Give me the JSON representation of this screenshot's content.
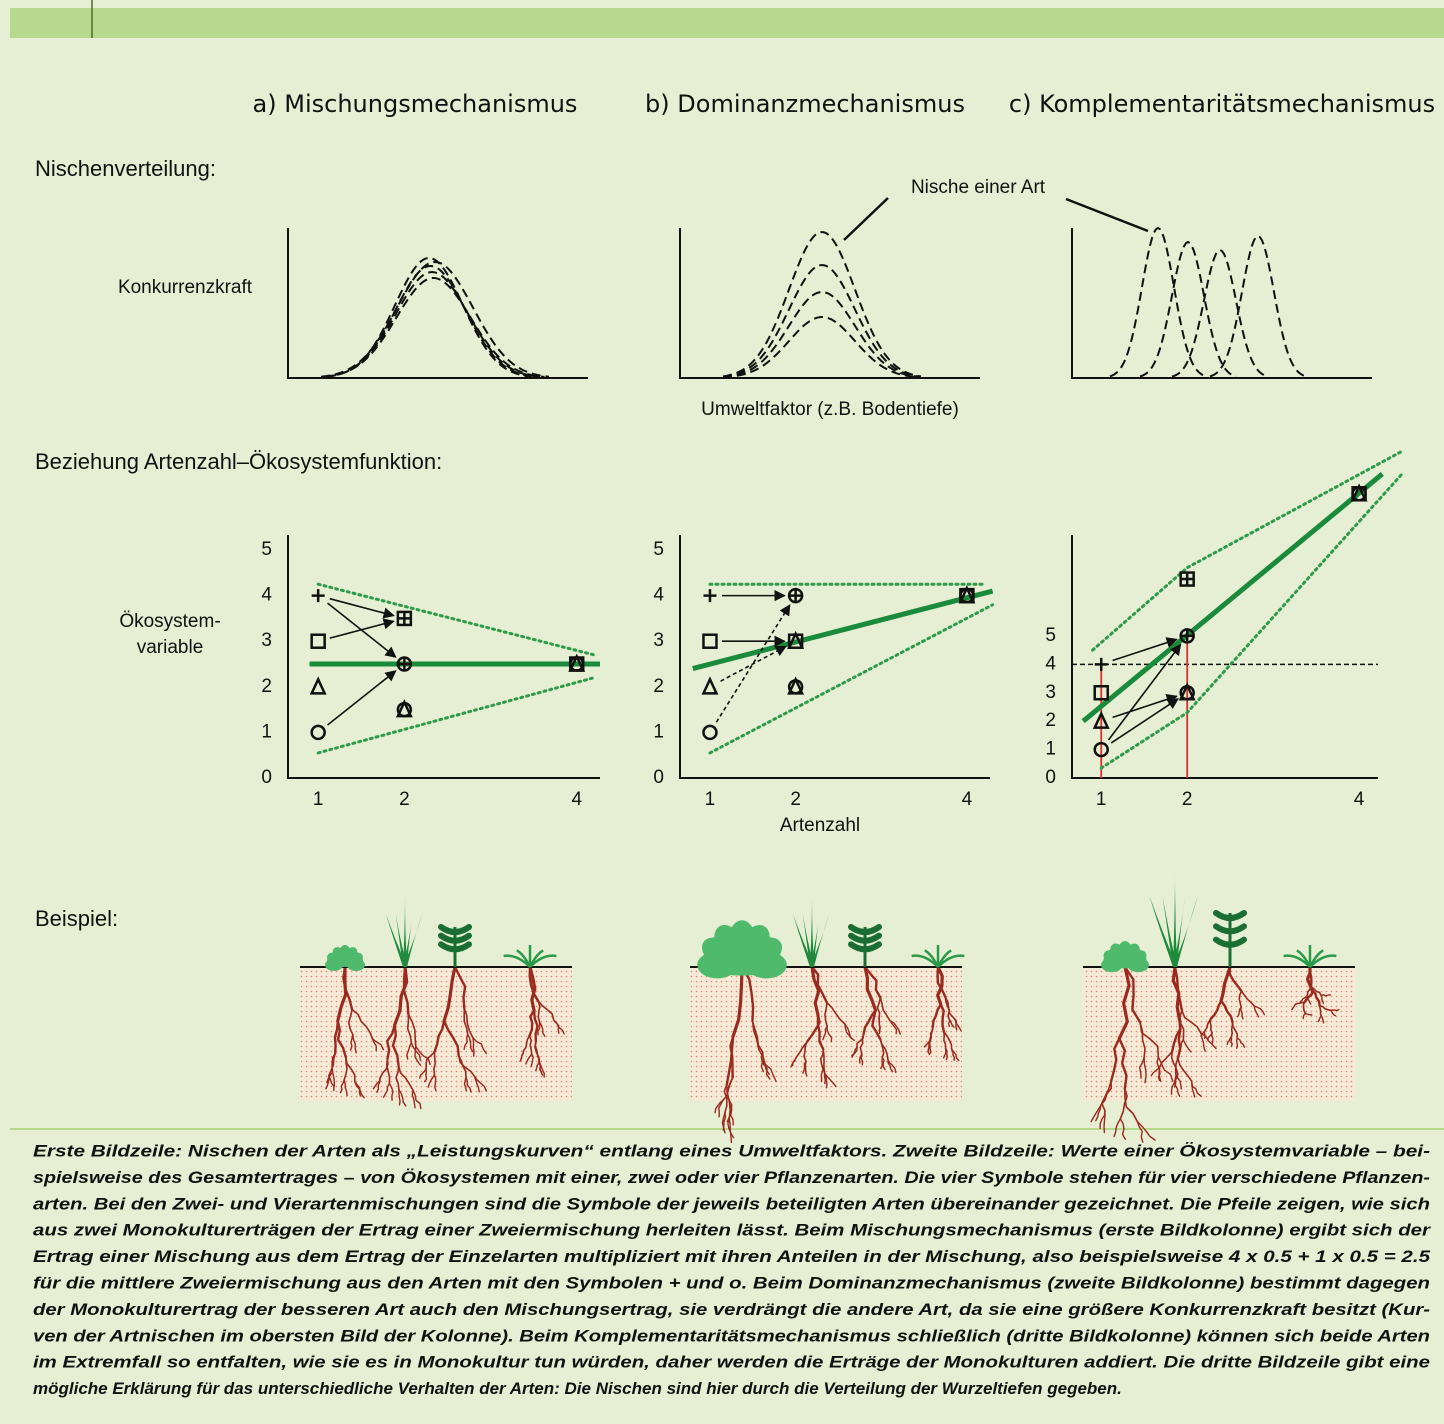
{
  "header": {
    "columns": [
      "a) Mischungsmechanismus",
      "b) Dominanzmechanismus",
      "c) Komplementaritätsmechanismus"
    ]
  },
  "niche_row": {
    "label": "Nischenverteilung:",
    "y_label": "Konkurrenzkraft",
    "x_label": "Umweltfaktor (z.B. Bodentiefe)",
    "annotation": "Nische einer Art"
  },
  "relation_row": {
    "label": "Beziehung Artenzahl–Ökosystemfunktion:",
    "y_label": [
      "Ökosystem-",
      "variable"
    ],
    "x_label": "Artenzahl",
    "panels": [
      {
        "xlim": [
          0.65,
          4.27
        ],
        "ylim": [
          0,
          5.33
        ],
        "xticks": [
          1,
          2,
          4
        ],
        "yticks": [
          0,
          1,
          2,
          3,
          4,
          5
        ],
        "monocultures": [
          4,
          3,
          2,
          1
        ],
        "mixtures_2": [
          3.5,
          2.5,
          1.5
        ],
        "mixture_4": 2.5,
        "trend": {
          "x": [
            0.9,
            4.27
          ],
          "y": [
            2.5,
            2.5
          ]
        },
        "upper": {
          "x": [
            1,
            4.2
          ],
          "y": [
            4.25,
            2.7
          ]
        },
        "lower": {
          "x": [
            1,
            4.2
          ],
          "y": [
            0.55,
            2.2
          ]
        }
      },
      {
        "xlim": [
          0.65,
          4.27
        ],
        "ylim": [
          0,
          5.33
        ],
        "xticks": [
          1,
          2,
          4
        ],
        "yticks": [
          0,
          1,
          2,
          3,
          4,
          5
        ],
        "monocultures": [
          4,
          3,
          2,
          1
        ],
        "mixtures_2": [
          4,
          3,
          2
        ],
        "mixture_4": 4,
        "trend": {
          "x": [
            0.8,
            4.3
          ],
          "y": [
            2.4,
            4.1
          ]
        },
        "upper": {
          "x": [
            1,
            4.2
          ],
          "y": [
            4.25,
            4.25
          ]
        },
        "lower": {
          "x": [
            1,
            4.3
          ],
          "y": [
            0.55,
            3.8
          ]
        }
      },
      {
        "xlim": [
          0.66,
          4.22
        ],
        "ylim": [
          0,
          8.55
        ],
        "xticks": [
          1,
          2,
          4
        ],
        "yticks": [
          0,
          1,
          2,
          3,
          4,
          5
        ],
        "monocultures": [
          4,
          3,
          2,
          1
        ],
        "mixtures_2": [
          7,
          5,
          3
        ],
        "mixture_4": 10,
        "guide_lines": true,
        "trend": {
          "x": [
            0.79,
            4.27
          ],
          "y": [
            2.0,
            10.7
          ]
        },
        "upper": {
          "x": [
            0.9,
            2,
            4.5
          ],
          "y": [
            4.5,
            7.4,
            11.5
          ]
        },
        "lower": {
          "x": [
            1,
            2,
            4.5
          ],
          "y": [
            0.35,
            2.3,
            10.7
          ]
        }
      }
    ]
  },
  "example_row": {
    "label": "Beispiel:"
  },
  "caption": [
    "Erste Bildzeile: Nischen der Arten als „Leistungskurven“ entlang eines Umweltfaktors. Zweite Bildzeile: Werte einer Ökosystemvariable – bei-",
    "spielsweise des Gesamtertrages – von Ökosystemen mit einer, zwei oder vier Pflanzenarten. Die vier Symbole stehen für vier verschiedene Pflanzen-",
    "arten. Bei den Zwei- und Vierartenmischungen sind die Symbole der jeweils beteiligten Arten übereinander gezeichnet. Die Pfeile zeigen, wie sich",
    "aus zwei Monokulturerträgen der Ertrag einer Zweiermischung herleiten lässt. Beim Mischungsmechanismus (erste Bildkolonne) ergibt sich der",
    "Ertrag einer Mischung aus dem Ertrag der Einzelarten multipliziert mit ihren Anteilen in der Mischung, also beispielsweise 4 x 0.5 + 1 x 0.5 = 2.5",
    "für die mittlere Zweiermischung aus den Arten mit den Symbolen + und o. Beim Dominanzmechanismus (zweite Bildkolonne) bestimmt dagegen",
    "der Monokulturertrag der besseren Art auch den Mischungsertrag, sie verdrängt die andere Art, da sie eine größere Konkurrenzkraft besitzt (Kur-",
    "ven der Artnischen im obersten Bild der Kolonne). Beim Komplementaritätsmechanismus schließlich (dritte Bildkolonne) können sich beide Arten",
    "im Extremfall so entfalten, wie sie es in Monokultur tun würden, daher werden die Erträge der Monokulturen addiert. Die dritte Bildzeile gibt eine",
    "mögliche Erklärung für das unterschiedliche Verhalten der Arten: Die Nischen sind hier durch die Verteilung der Wurzeltiefen gegeben."
  ]
}
